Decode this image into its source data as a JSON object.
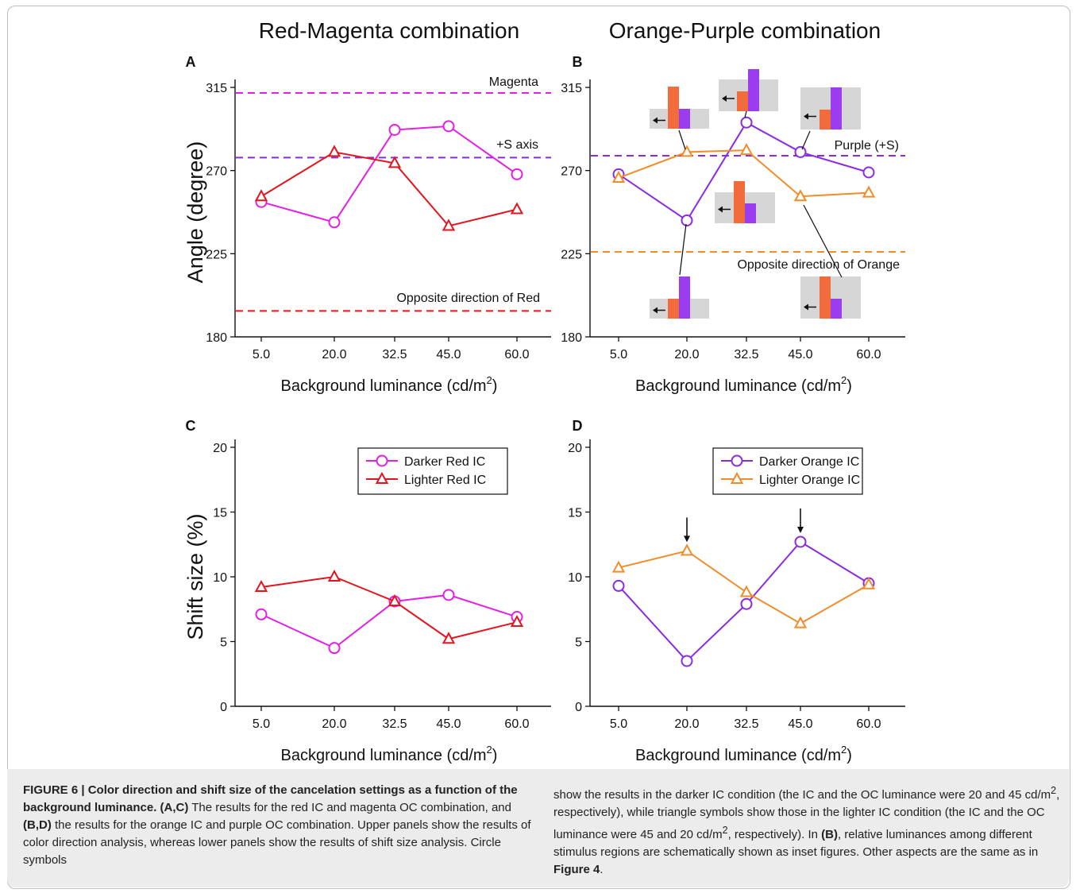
{
  "figure": {
    "titles": [
      "Red-Magenta combination",
      "Orange-Purple combination"
    ],
    "x_tick_labels": [
      "5.0",
      "20.0",
      "32.5",
      "45.0",
      "60.0"
    ],
    "x_label_text": "Background luminance (cd/m",
    "x_label_sup": "2",
    "x_label_close": ")",
    "colors": {
      "magenta": "#e41ee4",
      "red": "#e4141e",
      "purple": "#8a2be2",
      "orange": "#f28c28",
      "grey": "#d6d6d6",
      "bar_orange": "#f26b3a",
      "bar_purple": "#9b3cf0"
    }
  },
  "chart_data": [
    {
      "panel": "A",
      "type": "line",
      "ylabel": "Angle (degree)",
      "xlabel": "Background luminance (cd/m2)",
      "categories": [
        "5.0",
        "20.0",
        "32.5",
        "45.0",
        "60.0"
      ],
      "ylim": [
        180,
        315
      ],
      "yticks": [
        "180",
        "225",
        "270",
        "315"
      ],
      "series": [
        {
          "marker": "circle",
          "color": "#e41ee4",
          "values": [
            253,
            242,
            292,
            294,
            268
          ]
        },
        {
          "marker": "triangle",
          "color": "#e4141e",
          "values": [
            256,
            280,
            274,
            240,
            249
          ]
        }
      ],
      "reference_lines": [
        {
          "label": "Magenta",
          "value": 312,
          "color": "#e41ee4"
        },
        {
          "label": "+S axis",
          "value": 277,
          "color": "#8a2be2"
        },
        {
          "label": "Opposite direction of Red",
          "value": 194,
          "color": "#e4141e"
        }
      ]
    },
    {
      "panel": "B",
      "type": "line",
      "ylabel": "",
      "xlabel": "Background luminance (cd/m2)",
      "categories": [
        "5.0",
        "20.0",
        "32.5",
        "45.0",
        "60.0"
      ],
      "ylim": [
        180,
        315
      ],
      "yticks": [
        "180",
        "225",
        "270",
        "315"
      ],
      "series": [
        {
          "marker": "circle",
          "color": "#8a2be2",
          "values": [
            268,
            243,
            296,
            280,
            269
          ]
        },
        {
          "marker": "triangle",
          "color": "#f28c28",
          "values": [
            266,
            280,
            281,
            256,
            258
          ]
        }
      ],
      "reference_lines": [
        {
          "label": "Purple (+S)",
          "value": 278,
          "color": "#8a2be2"
        },
        {
          "label": "Opposite direction of Orange",
          "value": 226,
          "color": "#f28c28"
        }
      ]
    },
    {
      "panel": "C",
      "type": "line",
      "ylabel": "Shift size (%)",
      "xlabel": "Background luminance (cd/m2)",
      "categories": [
        "5.0",
        "20.0",
        "32.5",
        "45.0",
        "60.0"
      ],
      "ylim": [
        0,
        20
      ],
      "yticks": [
        "0",
        "5",
        "10",
        "15",
        "20"
      ],
      "legend": "top-right",
      "series": [
        {
          "name": "Darker Red IC",
          "marker": "circle",
          "color": "#e41ee4",
          "values": [
            7.1,
            4.5,
            8.1,
            8.6,
            6.9
          ]
        },
        {
          "name": "Lighter Red IC",
          "marker": "triangle",
          "color": "#e4141e",
          "values": [
            9.2,
            10.0,
            8.1,
            5.2,
            6.5
          ]
        }
      ]
    },
    {
      "panel": "D",
      "type": "line",
      "ylabel": "",
      "xlabel": "Background luminance (cd/m2)",
      "categories": [
        "5.0",
        "20.0",
        "32.5",
        "45.0",
        "60.0"
      ],
      "ylim": [
        0,
        20
      ],
      "yticks": [
        "0",
        "5",
        "10",
        "15",
        "20"
      ],
      "legend": "top-right",
      "series": [
        {
          "name": "Darker Orange IC",
          "marker": "circle",
          "color": "#8a2be2",
          "values": [
            9.3,
            3.5,
            7.9,
            12.7,
            9.5
          ]
        },
        {
          "name": "Lighter Orange IC",
          "marker": "triangle",
          "color": "#f28c28",
          "values": [
            10.7,
            12.0,
            8.8,
            6.4,
            9.4
          ]
        }
      ],
      "arrows_at": [
        "20.0",
        "45.0"
      ]
    }
  ],
  "caption": {
    "left_parts": [
      {
        "bold": true,
        "text": "FIGURE 6 | Color direction and shift size of the cancelation settings as a function of the background luminance."
      },
      {
        "bold": true,
        "text": " (A,C)"
      },
      {
        "bold": false,
        "text": " The results for the red IC and magenta OC combination, and "
      },
      {
        "bold": true,
        "text": "(B,D)"
      },
      {
        "bold": false,
        "text": " the results for the orange IC and purple OC combination. Upper panels show the results of color direction analysis, whereas lower panels show the results of shift size analysis. Circle symbols"
      }
    ],
    "right_parts": [
      {
        "bold": false,
        "text": "show the results in the darker IC condition (the IC and the OC luminance were 20 and 45 cd/m"
      },
      {
        "bold": false,
        "sup": true,
        "text": "2"
      },
      {
        "bold": false,
        "text": ", respectively), while triangle symbols show those in the lighter IC condition (the IC and the OC luminance were 45 and 20 cd/m"
      },
      {
        "bold": false,
        "sup": true,
        "text": "2"
      },
      {
        "bold": false,
        "text": ", respectively). In "
      },
      {
        "bold": true,
        "text": "(B)"
      },
      {
        "bold": false,
        "text": ", relative luminances among different stimulus regions are schematically shown as inset figures. Other aspects are the same as in "
      },
      {
        "bold": true,
        "text": "Figure 4"
      },
      {
        "bold": false,
        "text": "."
      }
    ]
  }
}
